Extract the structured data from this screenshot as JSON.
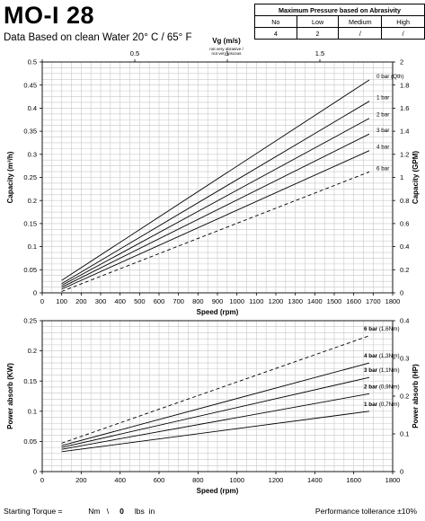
{
  "header": {
    "title": "MO-I 28",
    "subtitle": "Data Based on clean Water 20° C  /  65° F"
  },
  "abrasivity_table": {
    "title": "Maximum Pressure based on Abrasivity",
    "columns": [
      "No",
      "Low",
      "Medium",
      "High"
    ],
    "values": [
      "4",
      "2",
      "/",
      "/"
    ]
  },
  "footer": {
    "starting_torque_label": "Starting Torque =",
    "nm_label": "Nm",
    "sep": "\\",
    "torque_value": "0",
    "lbs_label": "lbs  in",
    "tolerance": "Performance tollerance ±10%"
  },
  "chart_data": [
    {
      "type": "line",
      "x_label": "Speed (rpm)",
      "y_label": "Capacity (m³/h)",
      "y2_label": "Capacity (GPM)",
      "top_axis_label": "Vg (m/s)",
      "top_axis_note": [
        "not very abrasive /",
        "not very viscous"
      ],
      "top_axis_ticks": [
        "0",
        "0.5",
        "1",
        "1.5"
      ],
      "x_ticks": [
        "0",
        "100",
        "200",
        "300",
        "400",
        "500",
        "600",
        "700",
        "800",
        "900",
        "1000",
        "1100",
        "1200",
        "1300",
        "1400",
        "1500",
        "1600",
        "1700",
        "1800"
      ],
      "y_ticks": [
        "0",
        "0.05",
        "0.1",
        "0.15",
        "0.2",
        "0.25",
        "0.3",
        "0.35",
        "0.4",
        "0.45",
        "0.5"
      ],
      "y2_ticks": [
        "0",
        "0.2",
        "0.4",
        "0.6",
        "0.8",
        "1",
        "1.2",
        "1.4",
        "1.6",
        "1.8",
        "2"
      ],
      "xlim": [
        0,
        1800
      ],
      "ylim": [
        0,
        0.5
      ],
      "grid": true,
      "series": [
        {
          "name": "0 bar (Qth)",
          "x": [
            100,
            1680
          ],
          "y": [
            0.027,
            0.461
          ],
          "dashed": false
        },
        {
          "name": "1 bar",
          "x": [
            100,
            1680
          ],
          "y": [
            0.02,
            0.415
          ],
          "dashed": false
        },
        {
          "name": "2 bar",
          "x": [
            100,
            1680
          ],
          "y": [
            0.016,
            0.378
          ],
          "dashed": false
        },
        {
          "name": "3 bar",
          "x": [
            100,
            1680
          ],
          "y": [
            0.012,
            0.344
          ],
          "dashed": false
        },
        {
          "name": "4 bar",
          "x": [
            100,
            1680
          ],
          "y": [
            0.008,
            0.308
          ],
          "dashed": false
        },
        {
          "name": "6 bar",
          "x": [
            100,
            1680
          ],
          "y": [
            0.003,
            0.262
          ],
          "dashed": true
        }
      ]
    },
    {
      "type": "line",
      "x_label": "Speed (rpm)",
      "y_label": "Power absorb (KW)",
      "y2_label": "Power absorb (HP)",
      "x_ticks": [
        "0",
        "200",
        "400",
        "600",
        "800",
        "1000",
        "1200",
        "1400",
        "1600",
        "1800"
      ],
      "y_ticks": [
        "0",
        "0.05",
        "0.1",
        "0.15",
        "0.2",
        "0.25"
      ],
      "y2_ticks": [
        "0",
        "0.1",
        "0.2",
        "0.3",
        "0.4"
      ],
      "xlim": [
        0,
        1800
      ],
      "ylim": [
        0,
        0.25
      ],
      "grid": true,
      "series": [
        {
          "name": "6 bar",
          "note": "(1,6Nm)",
          "x": [
            100,
            1680
          ],
          "y": [
            0.047,
            0.225
          ],
          "dashed": true
        },
        {
          "name": "4 bar",
          "note": "(1,3Nm)",
          "x": [
            100,
            1680
          ],
          "y": [
            0.043,
            0.18
          ],
          "dashed": false
        },
        {
          "name": "3 bar",
          "note": "(1,1Nm)",
          "x": [
            100,
            1680
          ],
          "y": [
            0.04,
            0.156
          ],
          "dashed": false
        },
        {
          "name": "2 bar",
          "note": "(0,9Nm)",
          "x": [
            100,
            1680
          ],
          "y": [
            0.037,
            0.129
          ],
          "dashed": false
        },
        {
          "name": "1 bar",
          "note": "(0,7Nm)",
          "x": [
            100,
            1680
          ],
          "y": [
            0.033,
            0.1
          ],
          "dashed": false
        }
      ]
    }
  ]
}
